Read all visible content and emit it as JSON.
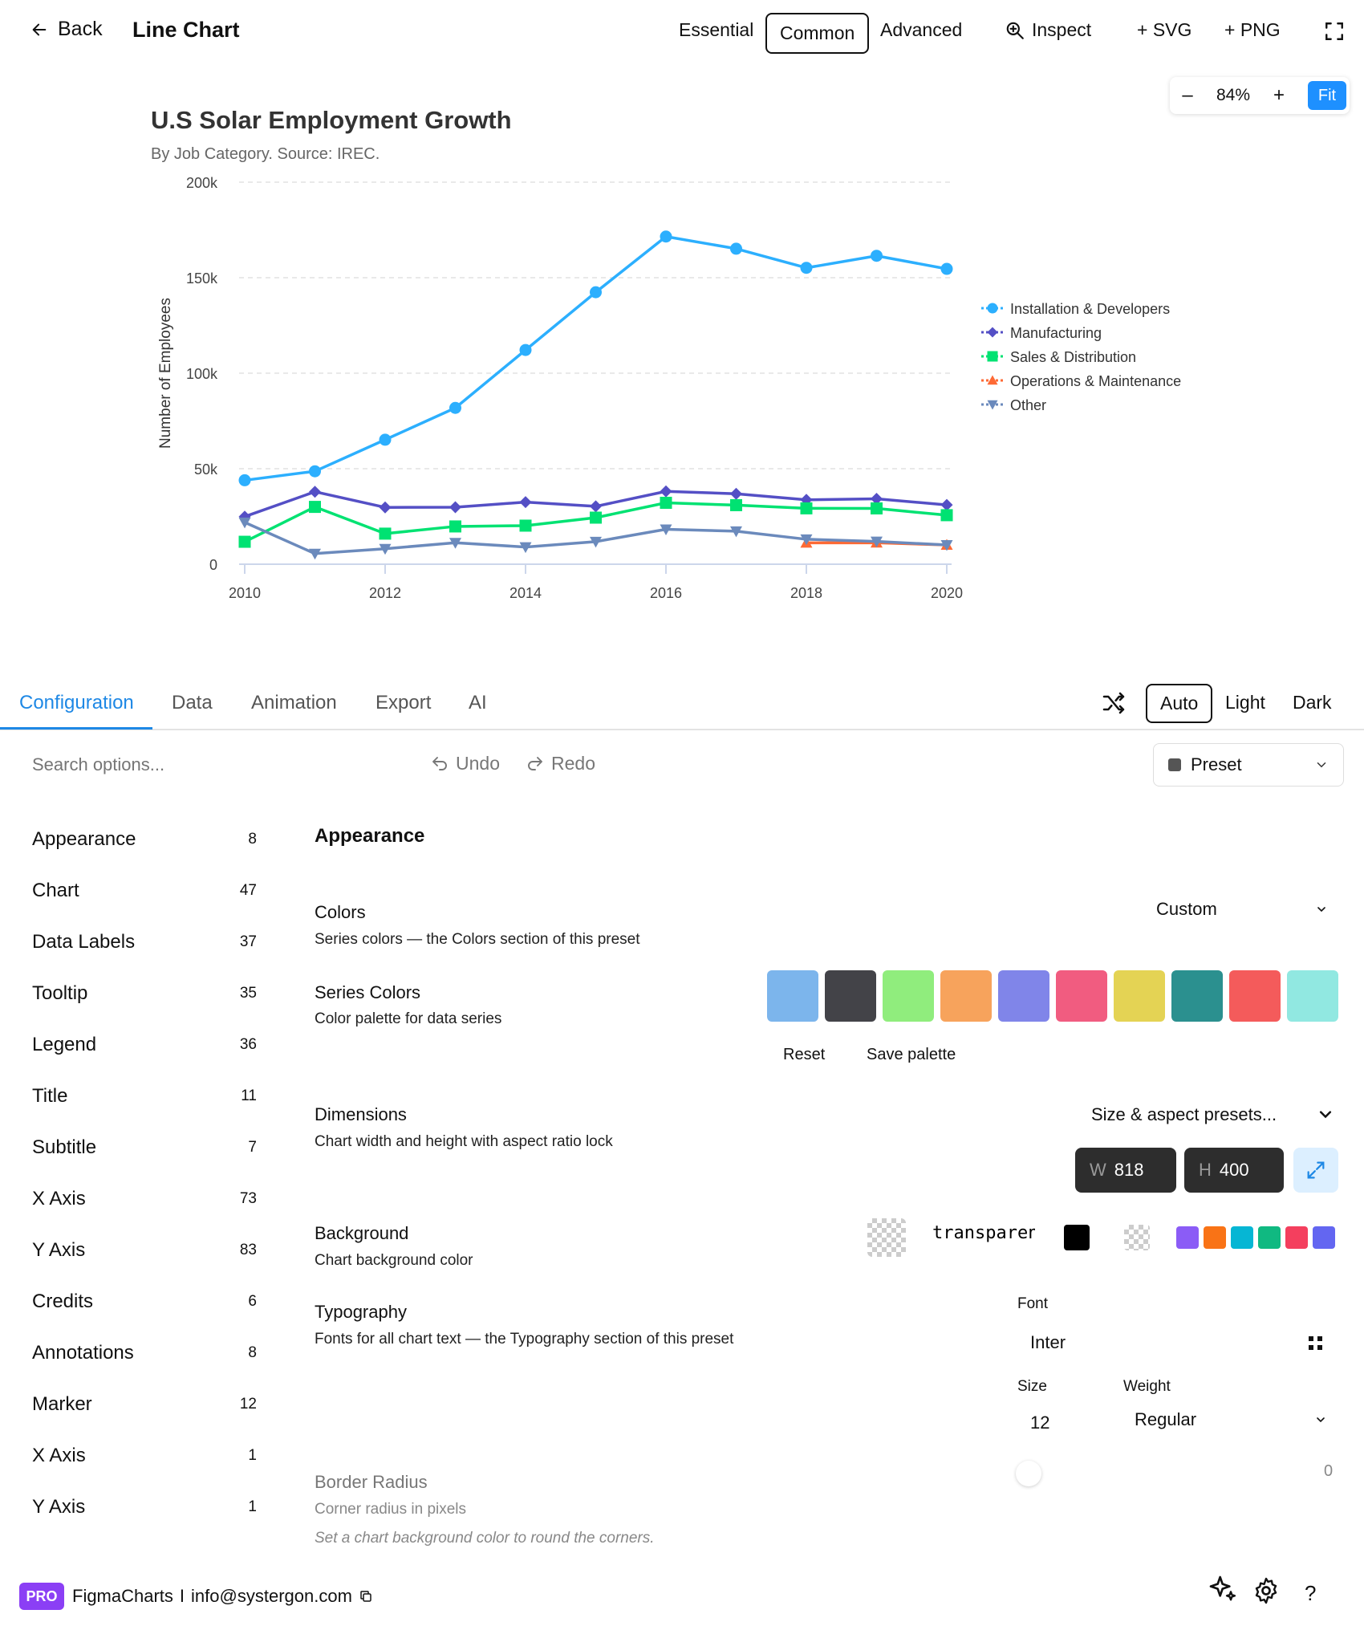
{
  "topbar": {
    "back_label": "Back",
    "title": "Line Chart",
    "levels": [
      "Essential",
      "Common",
      "Advanced"
    ],
    "active_level": "Common",
    "inspect_label": "Inspect",
    "svg_label": "+ SVG",
    "png_label": "+ PNG"
  },
  "zoom": {
    "minus": "–",
    "value": "84%",
    "plus": "+",
    "fit": "Fit"
  },
  "chart_data": {
    "type": "line",
    "title": "U.S Solar Employment Growth",
    "subtitle": "By Job Category. Source: IREC.",
    "ylabel": "Number of Employees",
    "xlabel": "",
    "x": [
      2010,
      2011,
      2012,
      2013,
      2014,
      2015,
      2016,
      2017,
      2018,
      2019,
      2020
    ],
    "x_ticks": [
      "2010",
      "2012",
      "2014",
      "2016",
      "2018",
      "2020"
    ],
    "y_ticks": [
      "0",
      "50k",
      "100k",
      "150k",
      "200k"
    ],
    "ylim": [
      0,
      200000
    ],
    "grid": true,
    "legend_position": "right",
    "series": [
      {
        "name": "Installation & Developers",
        "color": "#2caffe",
        "marker": "circle",
        "values": [
          43934,
          48656,
          65165,
          81827,
          112143,
          142383,
          171533,
          165174,
          155157,
          161454,
          154610
        ]
      },
      {
        "name": "Manufacturing",
        "color": "#544fc5",
        "marker": "diamond",
        "values": [
          24916,
          37941,
          29742,
          29851,
          32490,
          30282,
          38121,
          36885,
          33726,
          34243,
          31050
        ]
      },
      {
        "name": "Sales & Distribution",
        "color": "#00e272",
        "marker": "square",
        "values": [
          11744,
          30000,
          16005,
          19771,
          20185,
          24377,
          32147,
          30912,
          29243,
          29213,
          25663
        ]
      },
      {
        "name": "Operations & Maintenance",
        "color": "#fe6a35",
        "marker": "triangle",
        "values": [
          null,
          null,
          null,
          null,
          null,
          null,
          null,
          null,
          11164,
          11218,
          10077
        ]
      },
      {
        "name": "Other",
        "color": "#6b8abc",
        "marker": "triangle-down",
        "values": [
          21908,
          5548,
          8105,
          11248,
          8989,
          11816,
          18274,
          17300,
          13053,
          11906,
          10073
        ]
      }
    ]
  },
  "tabs": {
    "items": [
      "Configuration",
      "Data",
      "Animation",
      "Export",
      "AI"
    ],
    "active": "Configuration",
    "themes": [
      "Auto",
      "Light",
      "Dark"
    ],
    "active_theme": "Auto"
  },
  "toolbar": {
    "search_placeholder": "Search options...",
    "undo": "Undo",
    "redo": "Redo",
    "preset": "Preset"
  },
  "sidebar": {
    "items": [
      {
        "label": "Appearance",
        "count": "8"
      },
      {
        "label": "Chart",
        "count": "47"
      },
      {
        "label": "Data Labels",
        "count": "37"
      },
      {
        "label": "Tooltip",
        "count": "35"
      },
      {
        "label": "Legend",
        "count": "36"
      },
      {
        "label": "Title",
        "count": "11"
      },
      {
        "label": "Subtitle",
        "count": "7"
      },
      {
        "label": "X Axis",
        "count": "73"
      },
      {
        "label": "Y Axis",
        "count": "83"
      },
      {
        "label": "Credits",
        "count": "6"
      },
      {
        "label": "Annotations",
        "count": "8"
      },
      {
        "label": "Marker",
        "count": "12"
      },
      {
        "label": "X Axis",
        "count": "1"
      },
      {
        "label": "Y Axis",
        "count": "1"
      }
    ]
  },
  "main": {
    "section_title": "Appearance",
    "colors": {
      "label": "Colors",
      "desc": "Series colors — the Colors section of this preset",
      "value": "Custom"
    },
    "series_colors": {
      "label": "Series Colors",
      "desc": "Color palette for data series",
      "palette": [
        "#7cb5ec",
        "#434348",
        "#90ed7d",
        "#f7a35c",
        "#8085e9",
        "#f15c80",
        "#e4d354",
        "#2b908f",
        "#f45b5b",
        "#91e8e1"
      ],
      "reset": "Reset",
      "save": "Save palette"
    },
    "dimensions": {
      "label": "Dimensions",
      "desc": "Chart width and height with aspect ratio lock",
      "presets": "Size & aspect presets...",
      "w_key": "W",
      "w": "818",
      "h_key": "H",
      "h": "400"
    },
    "background": {
      "label": "Background",
      "desc": "Chart background color",
      "value": "transparent",
      "quick_colors": [
        "#8b5cf6",
        "#f97316",
        "#06b6d4",
        "#10b981",
        "#f43f5e",
        "#6366f1"
      ]
    },
    "typography": {
      "label": "Typography",
      "desc": "Fonts for all chart text — the Typography section of this preset",
      "font_label": "Font",
      "font": "Inter",
      "size_label": "Size",
      "size": "12",
      "weight_label": "Weight",
      "weight": "Regular"
    },
    "border_radius": {
      "label": "Border Radius",
      "desc": "Corner radius in pixels",
      "note": "Set a chart background color to round the corners.",
      "value": "0"
    }
  },
  "footer": {
    "pro": "PRO",
    "brand": "FigmaCharts",
    "separator": "I",
    "email": "info@systergon.com"
  }
}
